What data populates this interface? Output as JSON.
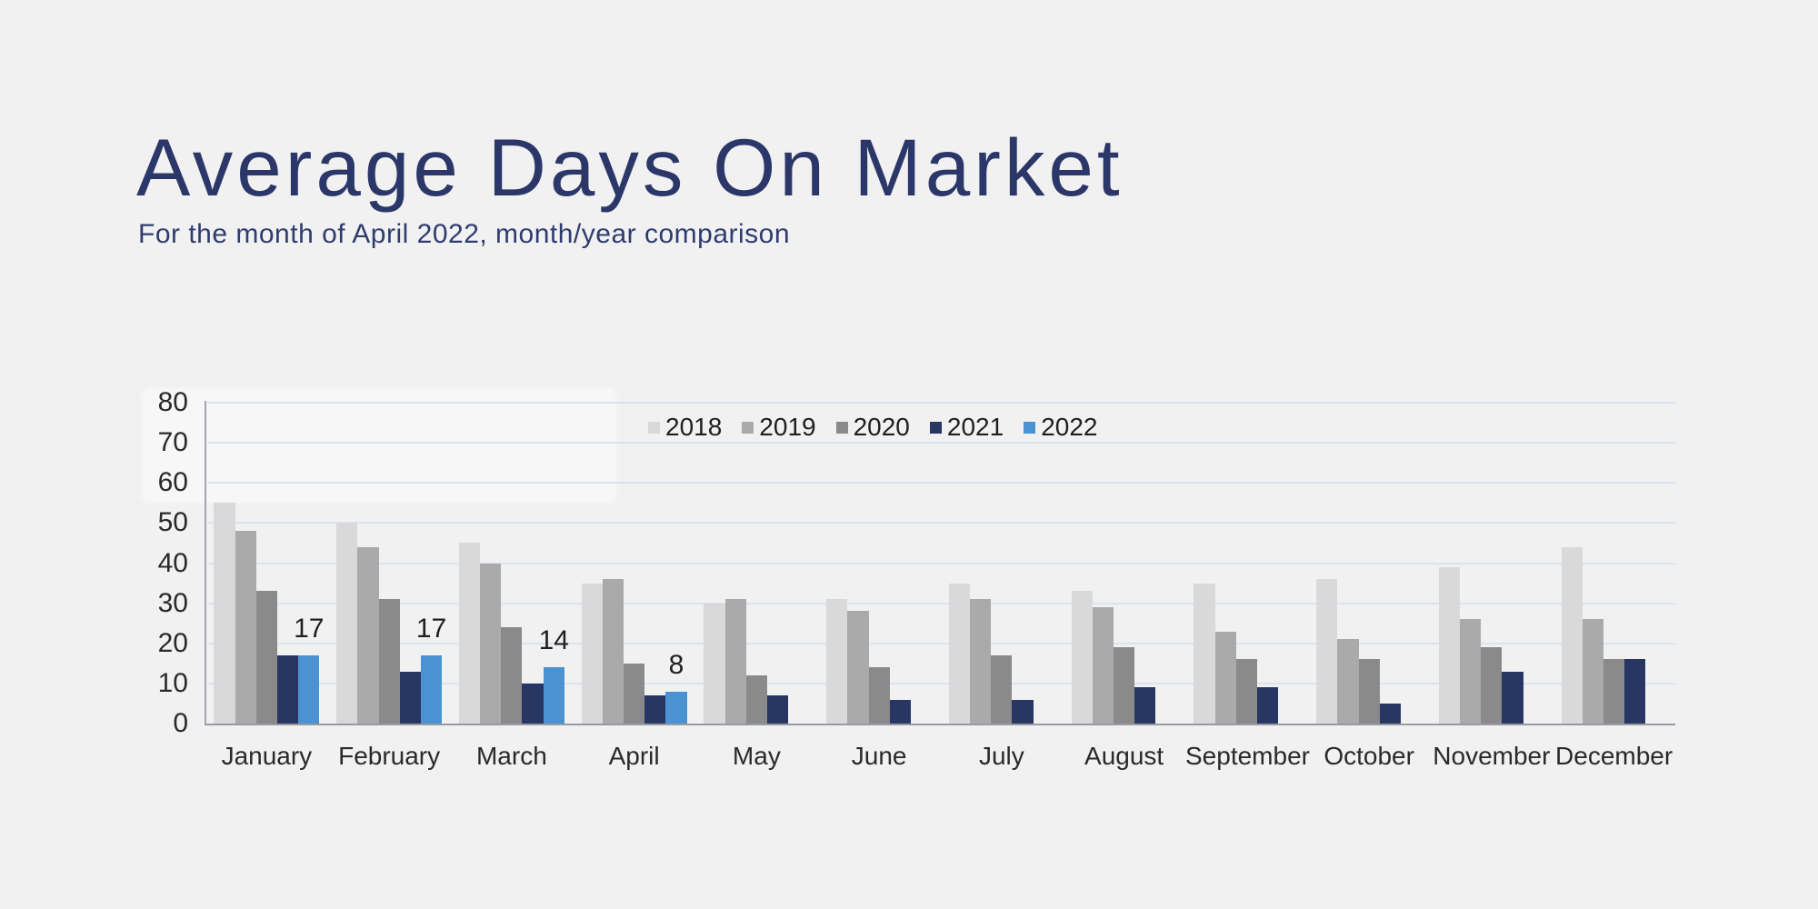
{
  "title": "Average Days On Market",
  "subtitle": "For the month of April 2022, month/year comparison",
  "chart_data": {
    "type": "bar",
    "title": "",
    "xlabel": "",
    "ylabel": "",
    "ylim": [
      0,
      80
    ],
    "ytick_step": 10,
    "grid": true,
    "legend_position": "top-center",
    "categories": [
      "January",
      "February",
      "March",
      "April",
      "May",
      "June",
      "July",
      "August",
      "September",
      "October",
      "November",
      "December"
    ],
    "series": [
      {
        "name": "2018",
        "color": "#d9d9d9",
        "values": [
          55,
          50,
          45,
          35,
          30,
          31,
          35,
          33,
          35,
          36,
          39,
          44
        ]
      },
      {
        "name": "2019",
        "color": "#aaaaaa",
        "values": [
          48,
          44,
          40,
          36,
          31,
          28,
          31,
          29,
          23,
          21,
          26,
          26
        ]
      },
      {
        "name": "2020",
        "color": "#8a8a8a",
        "values": [
          33,
          31,
          24,
          15,
          12,
          14,
          17,
          19,
          16,
          16,
          19,
          16
        ]
      },
      {
        "name": "2021",
        "color": "#283663",
        "values": [
          17,
          13,
          10,
          7,
          7,
          6,
          6,
          9,
          9,
          5,
          13,
          16
        ]
      },
      {
        "name": "2022",
        "color": "#4b92d3",
        "values": [
          17,
          17,
          14,
          8,
          null,
          null,
          null,
          null,
          null,
          null,
          null,
          null
        ],
        "data_labels": true
      }
    ]
  },
  "style": {
    "background": "#f1f1f2",
    "gridline_color": "#dde2ef",
    "axis_color": "#979aa1",
    "title_color": "#2b3768",
    "text_color": "#2a2a2a"
  }
}
